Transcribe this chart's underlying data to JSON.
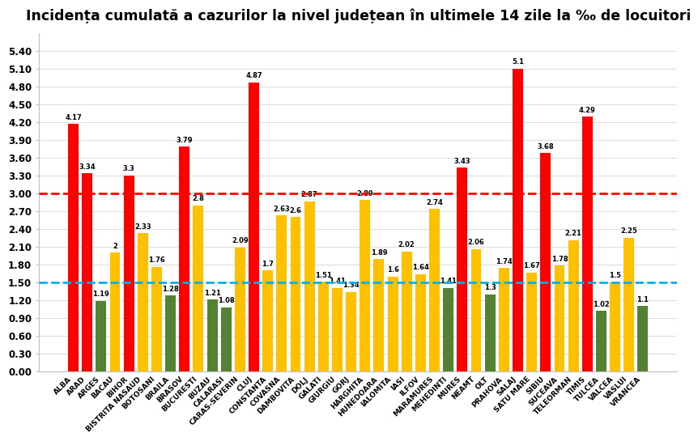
{
  "title": "Incidența cumulată a cazurilor la nivel județean în ultimele 14 zile la ‰ de locuitori",
  "categories": [
    "ALBA",
    "ARAD",
    "ARGES",
    "BACAU",
    "BIHOR",
    "BISTRITA NASAUD",
    "BOTOSANI",
    "BRAILA",
    "BRASOV",
    "BUCURESTI",
    "BUZAU",
    "CALARASI",
    "CARAS-SEVERIN",
    "CLUJ",
    "CONSTANTA",
    "COVASNA",
    "DAMBOVITA",
    "DOLJ",
    "GALATI",
    "GIURGIU",
    "GORJ",
    "HARGHITA",
    "HUNEDOARA",
    "IALOMITA",
    "IASI",
    "ILFOV",
    "MARAMURES",
    "MEHEDINTI",
    "MURES",
    "NEAMT",
    "OLT",
    "PRAHOVA",
    "SALAJ",
    "SATU MARE",
    "SIBIU",
    "SUCEAVA",
    "TELEORMAN",
    "TIMIS",
    "TULCEA",
    "VALCEA",
    "VASLUI",
    "VRANCEA"
  ],
  "values": [
    4.17,
    3.34,
    1.19,
    2.0,
    3.3,
    2.33,
    1.76,
    1.28,
    3.79,
    2.8,
    1.21,
    1.08,
    2.09,
    4.87,
    1.7,
    2.63,
    2.6,
    2.87,
    1.51,
    1.41,
    1.34,
    2.89,
    1.89,
    1.6,
    2.02,
    1.64,
    2.74,
    1.41,
    3.43,
    2.06,
    1.3,
    1.74,
    5.1,
    1.67,
    3.68,
    1.78,
    2.21,
    4.29,
    1.02,
    1.5,
    2.25,
    1.1
  ],
  "colors": [
    "red",
    "red",
    "green",
    "yellow",
    "red",
    "yellow",
    "yellow",
    "green",
    "red",
    "yellow",
    "green",
    "green",
    "yellow",
    "red",
    "yellow",
    "yellow",
    "yellow",
    "yellow",
    "yellow",
    "yellow",
    "yellow",
    "yellow",
    "yellow",
    "yellow",
    "yellow",
    "yellow",
    "yellow",
    "green",
    "red",
    "yellow",
    "green",
    "yellow",
    "red",
    "yellow",
    "red",
    "yellow",
    "yellow",
    "red",
    "green",
    "yellow",
    "yellow",
    "green"
  ],
  "red_line": 3.0,
  "blue_line": 1.5,
  "ylim": [
    0,
    5.7
  ],
  "yticks": [
    0.0,
    0.3,
    0.6,
    0.9,
    1.2,
    1.5,
    1.8,
    2.1,
    2.4,
    2.7,
    3.0,
    3.3,
    3.6,
    3.9,
    4.2,
    4.5,
    4.8,
    5.1,
    5.4
  ],
  "bar_width": 0.75,
  "red_color": "#FF0000",
  "yellow_color": "#FFC000",
  "green_color": "#548235",
  "dashed_red": "#FF0000",
  "dashed_blue": "#00B0F0",
  "bg_color": "#FFFFFF",
  "value_fontsize": 6.0,
  "xlabel_fontsize": 6.5,
  "title_fontsize": 12.5,
  "grid_color": "#BFBFBF"
}
